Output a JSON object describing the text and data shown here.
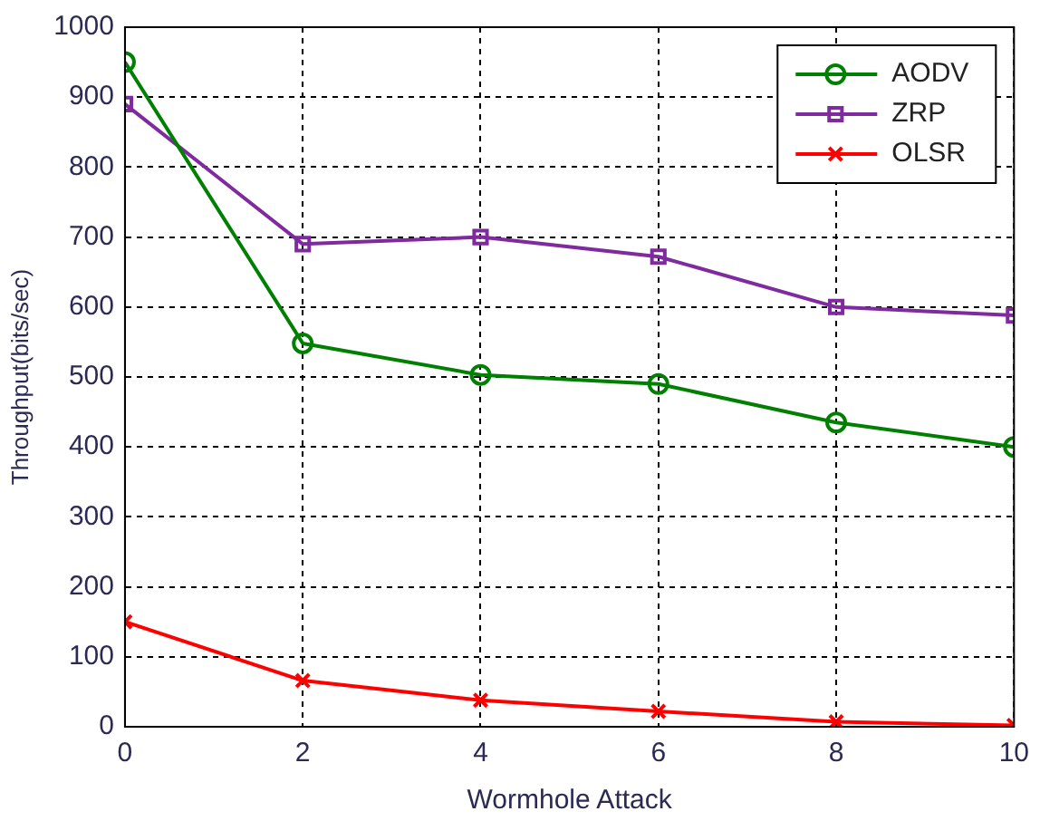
{
  "chart_data": {
    "type": "line",
    "xlabel": "Wormhole Attack",
    "ylabel": "Throughput(bits/sec)",
    "x": [
      0,
      2,
      4,
      6,
      8,
      10
    ],
    "series": [
      {
        "name": "AODV",
        "color": "#008000",
        "marker": "circle",
        "values": [
          950,
          548,
          503,
          490,
          435,
          400
        ]
      },
      {
        "name": "ZRP",
        "color": "#7f2a9f",
        "marker": "square",
        "values": [
          890,
          690,
          700,
          672,
          600,
          588
        ]
      },
      {
        "name": "OLSR",
        "color": "#ff0000",
        "marker": "cross",
        "values": [
          150,
          66,
          38,
          22,
          7,
          2
        ]
      }
    ],
    "xlim": [
      0,
      10
    ],
    "xticks": [
      0,
      2,
      4,
      6,
      8,
      10
    ],
    "ylim": [
      0,
      1000
    ],
    "yticks": [
      0,
      100,
      200,
      300,
      400,
      500,
      600,
      700,
      800,
      900,
      1000
    ],
    "grid": true,
    "legend": "top right",
    "line_style": "solid"
  }
}
